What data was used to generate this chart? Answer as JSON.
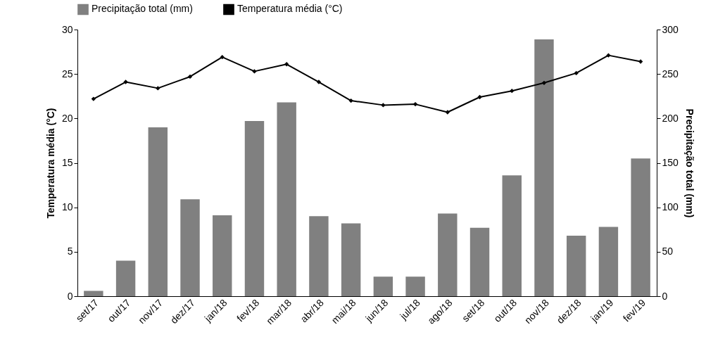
{
  "chart_data": {
    "type": "bar",
    "categories": [
      "set/17",
      "out/17",
      "nov/17",
      "dez/17",
      "jan/18",
      "fev/18",
      "mar/18",
      "abr/18",
      "mai/18",
      "jun/18",
      "jul/18",
      "ago/18",
      "set/18",
      "out/18",
      "nov/18",
      "dez/18",
      "jan/19",
      "fev/19"
    ],
    "series": [
      {
        "name": "Precipitação total (mm)",
        "axis": "y2",
        "color": "#808080",
        "values": [
          6,
          40,
          190,
          109,
          91,
          197,
          218,
          90,
          82,
          22,
          22,
          93,
          77,
          136,
          289,
          68,
          78,
          155
        ]
      },
      {
        "name": "Temperatura média (°C)",
        "type": "line",
        "color": "#000000",
        "values": [
          22.2,
          24.1,
          23.4,
          24.7,
          26.9,
          25.3,
          26.1,
          24.1,
          22.0,
          21.5,
          21.6,
          20.7,
          22.4,
          23.1,
          24.0,
          25.1,
          27.1,
          26.4
        ]
      }
    ],
    "ylabel": "Temperatura média (°C)",
    "y2label": "Precipitação total (mm)",
    "ylim": [
      0,
      30
    ],
    "yticks": [
      0,
      5,
      10,
      15,
      20,
      25,
      30
    ],
    "y2lim": [
      0,
      300
    ],
    "y2ticks": [
      0,
      50,
      100,
      150,
      200,
      250,
      300
    ],
    "grid": false,
    "legend": "top",
    "marker": "diamond",
    "line_style": "solid"
  }
}
